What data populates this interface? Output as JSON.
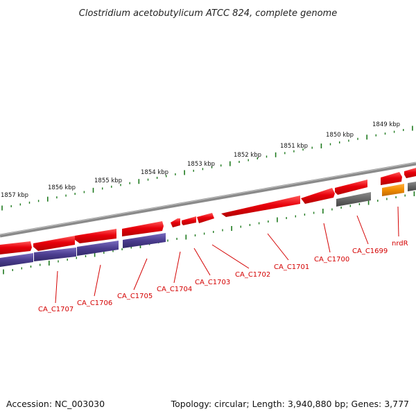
{
  "title": "Clostridium acetobutylicum ATCC 824, complete genome",
  "accession": "Accession: NC_003030",
  "topology": "Topology: circular; Length: 3,940,880 bp; Genes: 3,777",
  "colors": {
    "forward_gene": "#e8000b",
    "reverse_gene": "#4b3d8f",
    "pseudo_gene": "#666666",
    "rna_gene": "#f08c00",
    "backbone": "#8a8a8a",
    "scale_ticks": "#1e7a1e",
    "gene_label": "#d40000"
  },
  "kbp_ticks": [
    "1857 kbp",
    "1856 kbp",
    "1855 kbp",
    "1854 kbp",
    "1853 kbp",
    "1852 kbp",
    "1851 kbp",
    "1850 kbp",
    "1849 kbp"
  ],
  "gene_labels": [
    "CA_C1707",
    "CA_C1706",
    "CA_C1705",
    "CA_C1704",
    "CA_C1703",
    "CA_C1702",
    "CA_C1701",
    "CA_C1700",
    "CA_C1699",
    "nrdR"
  ]
}
